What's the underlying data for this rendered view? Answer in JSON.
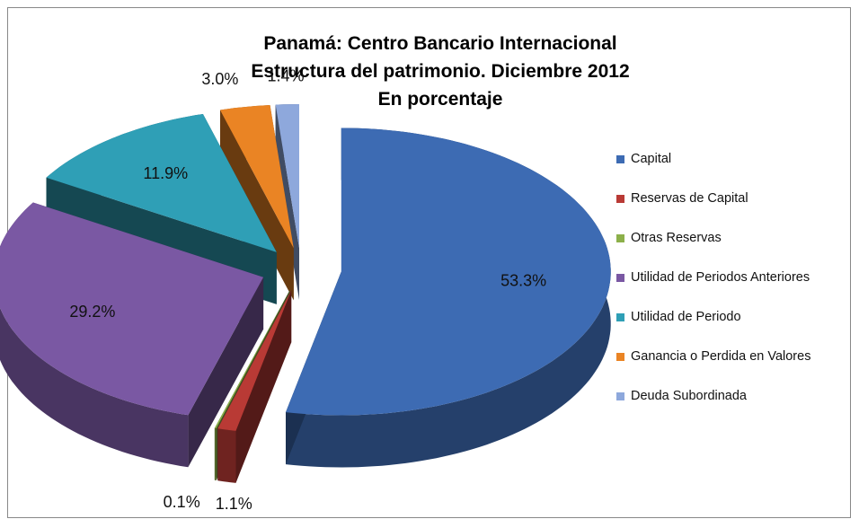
{
  "chart_data": {
    "type": "pie3d",
    "title": [
      "Panamá: Centro Bancario Internacional",
      "Estructura del patrimonio. Diciembre 2012",
      "En porcentaje"
    ],
    "categories": [
      "Capital",
      "Reservas de Capital",
      "Otras Reservas",
      "Utilidad de Periodos Anteriores",
      "Utilidad de Periodo",
      "Ganancia o Perdida en Valores",
      "Deuda Subordinada"
    ],
    "values": [
      53.3,
      1.1,
      0.1,
      29.2,
      11.9,
      3.0,
      1.4
    ],
    "value_labels": [
      "53.3%",
      "1.1%",
      "0.1%",
      "29.2%",
      "11.9%",
      "3.0%",
      "1.4%"
    ],
    "colors": [
      "#3d6bb3",
      "#b93a35",
      "#8cb04a",
      "#7a58a3",
      "#2f9fb6",
      "#ea8424",
      "#8ea8dc"
    ],
    "legend": "right"
  }
}
